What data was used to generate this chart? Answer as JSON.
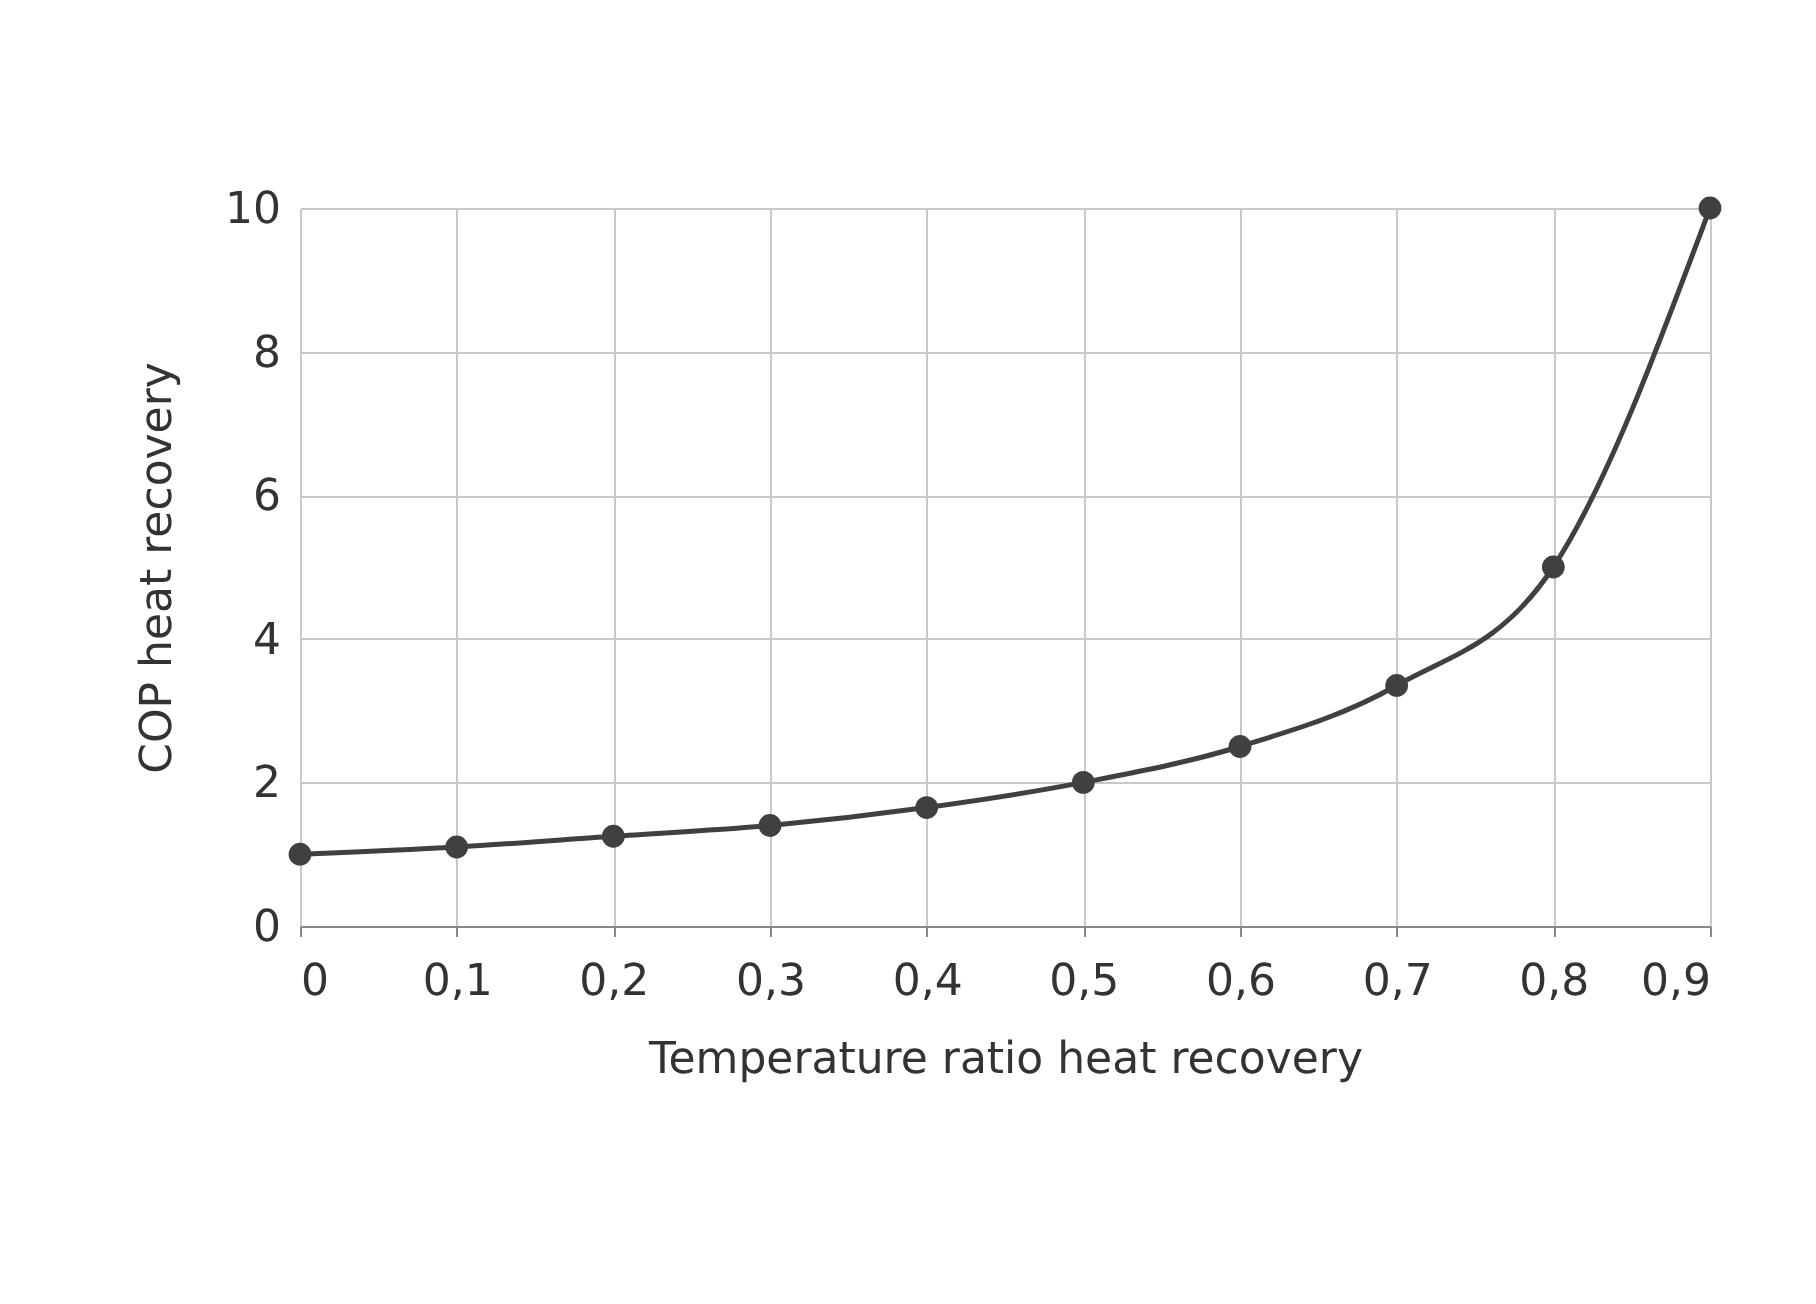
{
  "chart_data": {
    "type": "line",
    "xlabel": "Temperature ratio heat recovery",
    "ylabel": "COP heat recovery",
    "x": [
      0,
      0.1,
      0.2,
      0.3,
      0.4,
      0.5,
      0.6,
      0.7,
      0.8,
      0.9
    ],
    "series": [
      {
        "color": "#404040",
        "values": [
          1,
          1.1,
          1.25,
          1.4,
          1.65,
          2,
          2.5,
          3.35,
          5,
          10
        ]
      }
    ],
    "xlim": [
      0,
      0.9
    ],
    "ylim": [
      0,
      10
    ],
    "xticks": [
      0,
      {
        "value": 0.1,
        "label": "0,1"
      },
      {
        "value": 0.2,
        "label": "0,2"
      },
      {
        "value": 0.3,
        "label": "0,3"
      },
      {
        "value": 0.4,
        "label": "0,4"
      },
      {
        "value": 0.5,
        "label": "0,5"
      },
      {
        "value": 0.6,
        "label": "0,6"
      },
      {
        "value": 0.7,
        "label": "0,7"
      },
      {
        "value": 0.8,
        "label": "0,8"
      },
      {
        "value": 0.9,
        "label": "0,9"
      }
    ],
    "yticks": [
      0,
      2,
      4,
      6,
      8,
      10
    ],
    "grid": true,
    "marker": "circle",
    "line_style": "solid"
  }
}
